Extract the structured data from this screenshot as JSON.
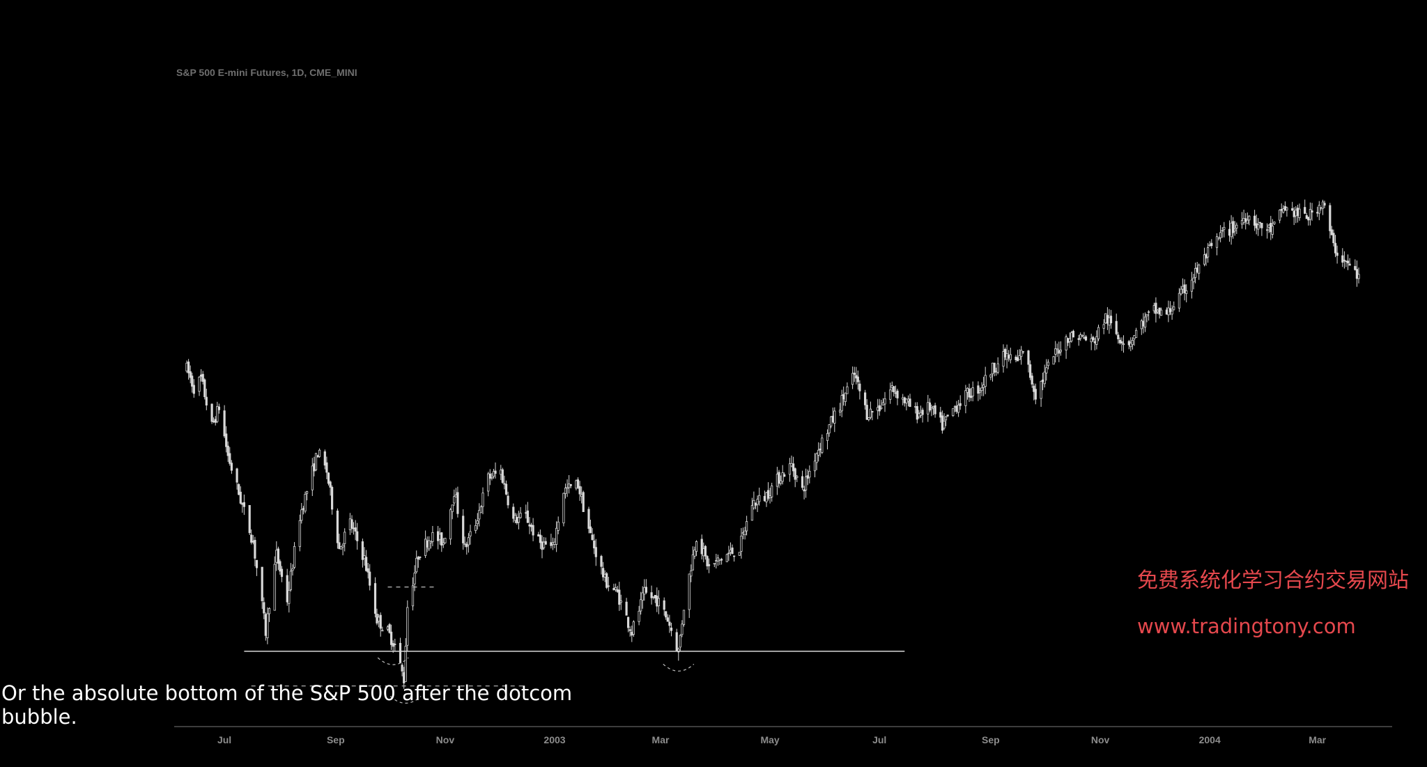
{
  "page": {
    "caption": "Or the absolute bottom of the S&P 500 after the dotcom bubble.",
    "watermark_cn": "免费系统化学习合约交易网站",
    "watermark_url": "www.tradingtony.com"
  },
  "colors": {
    "background": "#000000",
    "candles": "#d9d9d9",
    "axis": "#7a7a7a",
    "tick_text": "#8c8c8c",
    "support_line": "#d9d9d9",
    "dashed_lines": "#bfbfbf",
    "watermark": "#e5484d"
  },
  "chart_data": {
    "type": "candlestick",
    "title": "S&P 500 E-mini Futures, 1D, CME_MINI",
    "grid": false,
    "legend": "none",
    "x_range": [
      "2002-06-10",
      "2004-03-31"
    ],
    "y_range": [
      730,
      1220
    ],
    "x_ticks": [
      {
        "date": "2002-07-01",
        "label": "Jul"
      },
      {
        "date": "2002-09-01",
        "label": "Sep"
      },
      {
        "date": "2002-11-01",
        "label": "Nov"
      },
      {
        "date": "2003-01-01",
        "label": "2003"
      },
      {
        "date": "2003-03-01",
        "label": "Mar"
      },
      {
        "date": "2003-05-01",
        "label": "May"
      },
      {
        "date": "2003-07-01",
        "label": "Jul"
      },
      {
        "date": "2003-09-01",
        "label": "Sep"
      },
      {
        "date": "2003-11-01",
        "label": "Nov"
      },
      {
        "date": "2004-01-01",
        "label": "2004"
      },
      {
        "date": "2004-03-01",
        "label": "Mar"
      }
    ],
    "price_path": [
      [
        "2002-06-10",
        1020
      ],
      [
        "2002-06-14",
        1005
      ],
      [
        "2002-06-18",
        1012
      ],
      [
        "2002-06-24",
        975
      ],
      [
        "2002-06-28",
        990
      ],
      [
        "2002-07-03",
        952
      ],
      [
        "2002-07-10",
        918
      ],
      [
        "2002-07-17",
        885
      ],
      [
        "2002-07-24",
        815
      ],
      [
        "2002-07-26",
        838
      ],
      [
        "2002-07-30",
        875
      ],
      [
        "2002-08-05",
        840
      ],
      [
        "2002-08-12",
        905
      ],
      [
        "2002-08-16",
        925
      ],
      [
        "2002-08-22",
        955
      ],
      [
        "2002-08-27",
        940
      ],
      [
        "2002-09-03",
        880
      ],
      [
        "2002-09-09",
        900
      ],
      [
        "2002-09-17",
        872
      ],
      [
        "2002-09-24",
        825
      ],
      [
        "2002-09-30",
        815
      ],
      [
        "2002-10-04",
        805
      ],
      [
        "2002-10-09",
        778
      ],
      [
        "2002-10-11",
        835
      ],
      [
        "2002-10-17",
        875
      ],
      [
        "2002-10-24",
        890
      ],
      [
        "2002-10-31",
        885
      ],
      [
        "2002-11-06",
        925
      ],
      [
        "2002-11-12",
        880
      ],
      [
        "2002-11-18",
        900
      ],
      [
        "2002-11-25",
        935
      ],
      [
        "2002-12-02",
        940
      ],
      [
        "2002-12-09",
        902
      ],
      [
        "2002-12-16",
        905
      ],
      [
        "2002-12-23",
        885
      ],
      [
        "2002-12-31",
        880
      ],
      [
        "2003-01-06",
        925
      ],
      [
        "2003-01-14",
        930
      ],
      [
        "2003-01-21",
        890
      ],
      [
        "2003-01-29",
        855
      ],
      [
        "2003-02-05",
        845
      ],
      [
        "2003-02-13",
        815
      ],
      [
        "2003-02-20",
        845
      ],
      [
        "2003-02-27",
        840
      ],
      [
        "2003-03-05",
        825
      ],
      [
        "2003-03-11",
        800
      ],
      [
        "2003-03-14",
        835
      ],
      [
        "2003-03-21",
        890
      ],
      [
        "2003-03-28",
        865
      ],
      [
        "2003-04-07",
        875
      ],
      [
        "2003-04-14",
        880
      ],
      [
        "2003-04-21",
        915
      ],
      [
        "2003-04-28",
        920
      ],
      [
        "2003-05-06",
        935
      ],
      [
        "2003-05-13",
        945
      ],
      [
        "2003-05-19",
        925
      ],
      [
        "2003-05-27",
        955
      ],
      [
        "2003-06-03",
        975
      ],
      [
        "2003-06-10",
        995
      ],
      [
        "2003-06-17",
        1015
      ],
      [
        "2003-06-24",
        985
      ],
      [
        "2003-07-01",
        990
      ],
      [
        "2003-07-08",
        1005
      ],
      [
        "2003-07-15",
        995
      ],
      [
        "2003-07-22",
        985
      ],
      [
        "2003-07-29",
        990
      ],
      [
        "2003-08-05",
        975
      ],
      [
        "2003-08-12",
        990
      ],
      [
        "2003-08-19",
        1000
      ],
      [
        "2003-08-26",
        1005
      ],
      [
        "2003-09-02",
        1020
      ],
      [
        "2003-09-09",
        1030
      ],
      [
        "2003-09-16",
        1025
      ],
      [
        "2003-09-19",
        1035
      ],
      [
        "2003-09-26",
        1000
      ],
      [
        "2003-10-06",
        1030
      ],
      [
        "2003-10-14",
        1045
      ],
      [
        "2003-10-21",
        1045
      ],
      [
        "2003-10-28",
        1040
      ],
      [
        "2003-11-04",
        1060
      ],
      [
        "2003-11-11",
        1045
      ],
      [
        "2003-11-17",
        1040
      ],
      [
        "2003-11-24",
        1055
      ],
      [
        "2003-12-01",
        1065
      ],
      [
        "2003-12-08",
        1062
      ],
      [
        "2003-12-15",
        1075
      ],
      [
        "2003-12-22",
        1090
      ],
      [
        "2003-12-31",
        1110
      ],
      [
        "2004-01-08",
        1125
      ],
      [
        "2004-01-15",
        1130
      ],
      [
        "2004-01-22",
        1140
      ],
      [
        "2004-01-29",
        1130
      ],
      [
        "2004-02-05",
        1128
      ],
      [
        "2004-02-11",
        1145
      ],
      [
        "2004-02-19",
        1140
      ],
      [
        "2004-02-25",
        1138
      ],
      [
        "2004-03-04",
        1150
      ],
      [
        "2004-03-10",
        1115
      ],
      [
        "2004-03-15",
        1105
      ],
      [
        "2004-03-22",
        1095
      ],
      [
        "2004-03-24",
        1090
      ]
    ],
    "levels": [
      {
        "kind": "support",
        "value": 800,
        "from": "2002-07-12",
        "to": "2003-07-15",
        "style": "solid"
      },
      {
        "kind": "absolute-low",
        "value": 773,
        "from": "2002-07-16",
        "to": "2002-12-15",
        "style": "dashed"
      },
      {
        "kind": "neckline",
        "value": 850,
        "from": "2002-09-30",
        "to": "2002-10-27",
        "style": "dashed"
      }
    ],
    "marks": [
      {
        "kind": "low-arc",
        "date": "2002-10-03",
        "value": 795
      },
      {
        "kind": "low-arc",
        "date": "2002-10-10",
        "value": 765
      },
      {
        "kind": "low-arc",
        "date": "2003-03-11",
        "value": 790
      }
    ]
  }
}
